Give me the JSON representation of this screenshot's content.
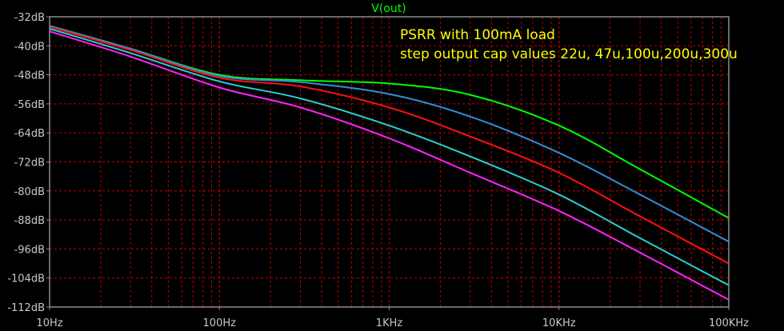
{
  "chart_data": {
    "type": "line",
    "title": "V(out)",
    "xscale": "log",
    "xlim": [
      10,
      100000
    ],
    "ylim": [
      -112,
      -32
    ],
    "grid": true,
    "x_tick_values": [
      10,
      100,
      1000,
      10000,
      100000
    ],
    "x_tick_labels": [
      "10Hz",
      "100Hz",
      "1KHz",
      "10KHz",
      "100KHz"
    ],
    "y_tick_values": [
      -32,
      -40,
      -48,
      -56,
      -64,
      -72,
      -80,
      -88,
      -96,
      -104,
      -112
    ],
    "y_tick_labels": [
      "-32dB",
      "-40dB",
      "-48dB",
      "-56dB",
      "-64dB",
      "-72dB",
      "-80dB",
      "-88dB",
      "-96dB",
      "-104dB",
      "-112dB"
    ],
    "annotations": [
      "PSRR with 100mA load",
      "step output cap values 22u, 47u,100u,200u,300u"
    ],
    "x": [
      10,
      30,
      100,
      300,
      1000,
      3000,
      10000,
      30000,
      100000
    ],
    "series": [
      {
        "color": "#00ff00",
        "values": [
          -34.5,
          -40.8,
          -48.0,
          -49.5,
          -50.4,
          -53.5,
          -62.0,
          -74.0,
          -87.5
        ]
      },
      {
        "color": "#2f8fd8",
        "values": [
          -34.5,
          -40.8,
          -48.3,
          -50.0,
          -53.3,
          -59.5,
          -69.5,
          -81.0,
          -94.0
        ]
      },
      {
        "color": "#ff1010",
        "values": [
          -34.8,
          -41.2,
          -48.8,
          -51.2,
          -57.0,
          -65.0,
          -75.0,
          -87.0,
          -100.0
        ]
      },
      {
        "color": "#28d0d0",
        "values": [
          -35.3,
          -42.0,
          -49.8,
          -54.5,
          -62.0,
          -70.5,
          -81.0,
          -93.0,
          -106.0
        ]
      },
      {
        "color": "#ff22ff",
        "values": [
          -36.0,
          -43.0,
          -51.5,
          -57.0,
          -65.5,
          -75.0,
          -85.5,
          -97.0,
          -110.0
        ]
      }
    ]
  },
  "style": {
    "background": "#000000",
    "axis_color": "#8c8c8c",
    "grid_color": "#c00000",
    "tick_text_color": "#c8c8c8",
    "title_color": "#00ff00",
    "annotation_color": "#ffff00"
  }
}
